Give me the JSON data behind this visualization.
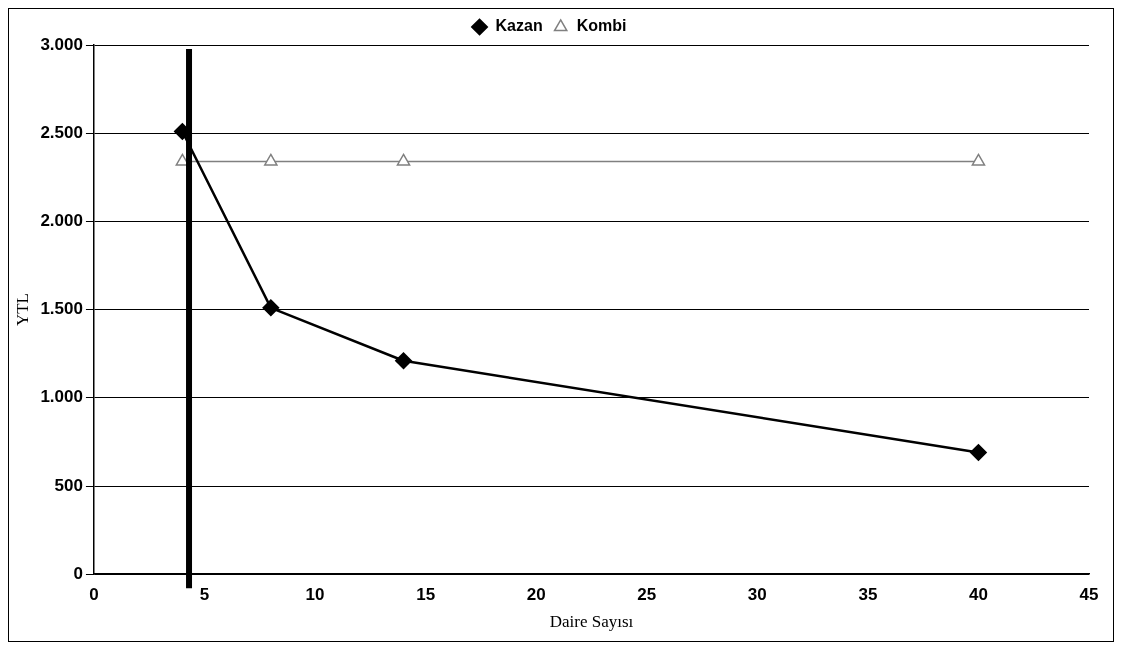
{
  "chart_data": {
    "type": "line",
    "xlabel": "Daire Sayısı",
    "ylabel": "YTL",
    "xlim": [
      0,
      45
    ],
    "xticks": [
      0,
      5,
      10,
      15,
      20,
      25,
      30,
      35,
      40,
      45
    ],
    "ylim": [
      0,
      3000
    ],
    "yticks": [
      {
        "value": 0,
        "label": "0"
      },
      {
        "value": 500,
        "label": "500"
      },
      {
        "value": 1000,
        "label": "1.000"
      },
      {
        "value": 1500,
        "label": "1.500"
      },
      {
        "value": 2000,
        "label": "2.000"
      },
      {
        "value": 2500,
        "label": "2.500"
      },
      {
        "value": 3000,
        "label": "3.000"
      }
    ],
    "grid": "y",
    "legend": "top",
    "series": [
      {
        "name": "Kazan",
        "color": "#000000",
        "marker": "diamond",
        "x": [
          4,
          8,
          14,
          40
        ],
        "values": [
          2510,
          1510,
          1210,
          690
        ]
      },
      {
        "name": "Kombi",
        "color": "#808080",
        "marker": "triangle",
        "x": [
          4,
          8,
          14,
          40
        ],
        "values": [
          2340,
          2340,
          2340,
          2340
        ]
      }
    ],
    "ref_lines": [
      {
        "axis": "x",
        "value": 4.3,
        "color": "#000000"
      }
    ]
  }
}
